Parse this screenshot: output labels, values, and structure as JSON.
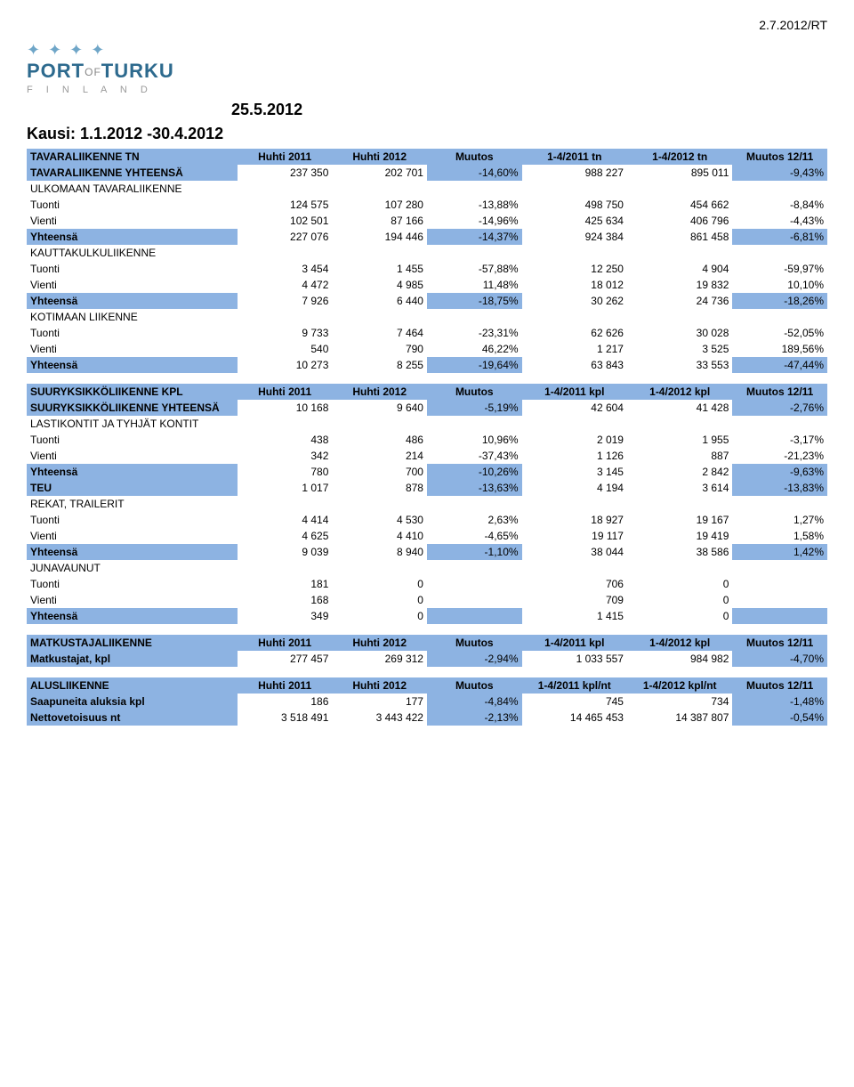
{
  "meta": {
    "top_right": "2.7.2012/RT",
    "date_big": "25.5.2012",
    "kausi": "Kausi: 1.1.2012 -30.4.2012"
  },
  "logo": {
    "brand_pre": "PORT",
    "brand_of": "OF",
    "brand_post": "TURKU",
    "subtitle": "F I N L A N D"
  },
  "colors": {
    "blue": "#8db3e2"
  },
  "t1": {
    "hdr": [
      "TAVARALIIKENNE TN",
      "Huhti 2011",
      "Huhti 2012",
      "Muutos",
      "1-4/2011 tn",
      "1-4/2012 tn",
      "Muutos 12/11"
    ],
    "total": [
      "TAVARALIIKENNE YHTEENSÄ",
      "237 350",
      "202 701",
      "-14,60%",
      "988 227",
      "895 011",
      "-9,43%"
    ],
    "s1_title": "ULKOMAAN TAVARALIIKENNE",
    "s1": [
      [
        "Tuonti",
        "124 575",
        "107 280",
        "-13,88%",
        "498 750",
        "454 662",
        "-8,84%"
      ],
      [
        "Vienti",
        "102 501",
        "87 166",
        "-14,96%",
        "425 634",
        "406 796",
        "-4,43%"
      ]
    ],
    "s1_tot": [
      "Yhteensä",
      "227 076",
      "194 446",
      "-14,37%",
      "924 384",
      "861 458",
      "-6,81%"
    ],
    "s2_title": "KAUTTAKULKULIIKENNE",
    "s2": [
      [
        "Tuonti",
        "3 454",
        "1 455",
        "-57,88%",
        "12 250",
        "4 904",
        "-59,97%"
      ],
      [
        "Vienti",
        "4 472",
        "4 985",
        "11,48%",
        "18 012",
        "19 832",
        "10,10%"
      ]
    ],
    "s2_tot": [
      "Yhteensä",
      "7 926",
      "6 440",
      "-18,75%",
      "30 262",
      "24 736",
      "-18,26%"
    ],
    "s3_title": "KOTIMAAN LIIKENNE",
    "s3": [
      [
        "Tuonti",
        "9 733",
        "7 464",
        "-23,31%",
        "62 626",
        "30 028",
        "-52,05%"
      ],
      [
        "Vienti",
        "540",
        "790",
        "46,22%",
        "1 217",
        "3 525",
        "189,56%"
      ]
    ],
    "s3_tot": [
      "Yhteensä",
      "10 273",
      "8 255",
      "-19,64%",
      "63 843",
      "33 553",
      "-47,44%"
    ]
  },
  "t2": {
    "hdr": [
      "SUURYKSIKKÖLIIKENNE KPL",
      "Huhti 2011",
      "Huhti 2012",
      "Muutos",
      "1-4/2011 kpl",
      "1-4/2012 kpl",
      "Muutos 12/11"
    ],
    "total": [
      "SUURYKSIKKÖLIIKENNE YHTEENSÄ",
      "10 168",
      "9 640",
      "-5,19%",
      "42 604",
      "41 428",
      "-2,76%"
    ],
    "s1_title": "LASTIKONTIT JA TYHJÄT KONTIT",
    "s1": [
      [
        "Tuonti",
        "438",
        "486",
        "10,96%",
        "2 019",
        "1 955",
        "-3,17%"
      ],
      [
        "Vienti",
        "342",
        "214",
        "-37,43%",
        "1 126",
        "887",
        "-21,23%"
      ]
    ],
    "s1_tot": [
      "Yhteensä",
      "780",
      "700",
      "-10,26%",
      "3 145",
      "2 842",
      "-9,63%"
    ],
    "teu": [
      "TEU",
      "1 017",
      "878",
      "-13,63%",
      "4 194",
      "3 614",
      "-13,83%"
    ],
    "s2_title": "REKAT, TRAILERIT",
    "s2": [
      [
        "Tuonti",
        "4 414",
        "4 530",
        "2,63%",
        "18 927",
        "19 167",
        "1,27%"
      ],
      [
        "Vienti",
        "4 625",
        "4 410",
        "-4,65%",
        "19 117",
        "19 419",
        "1,58%"
      ]
    ],
    "s2_tot": [
      "Yhteensä",
      "9 039",
      "8 940",
      "-1,10%",
      "38 044",
      "38 586",
      "1,42%"
    ],
    "s3_title": "JUNAVAUNUT",
    "s3": [
      [
        "Tuonti",
        "181",
        "0",
        "",
        "706",
        "0",
        ""
      ],
      [
        "Vienti",
        "168",
        "0",
        "",
        "709",
        "0",
        ""
      ]
    ],
    "s3_tot": [
      "Yhteensä",
      "349",
      "0",
      "",
      "1 415",
      "0",
      ""
    ]
  },
  "t3": {
    "hdr": [
      "MATKUSTAJALIIKENNE",
      "Huhti 2011",
      "Huhti 2012",
      "Muutos",
      "1-4/2011 kpl",
      "1-4/2012 kpl",
      "Muutos 12/11"
    ],
    "row": [
      "Matkustajat, kpl",
      "277 457",
      "269 312",
      "-2,94%",
      "1 033 557",
      "984 982",
      "-4,70%"
    ]
  },
  "t4": {
    "hdr": [
      "ALUSLIIKENNE",
      "Huhti 2011",
      "Huhti 2012",
      "Muutos",
      "1-4/2011 kpl/nt",
      "1-4/2012 kpl/nt",
      "Muutos 12/11"
    ],
    "rows": [
      [
        "Saapuneita aluksia kpl",
        "186",
        "177",
        "-4,84%",
        "745",
        "734",
        "-1,48%"
      ],
      [
        "Nettovetoisuus nt",
        "3 518 491",
        "3 443 422",
        "-2,13%",
        "14 465 453",
        "14 387 807",
        "-0,54%"
      ]
    ]
  }
}
